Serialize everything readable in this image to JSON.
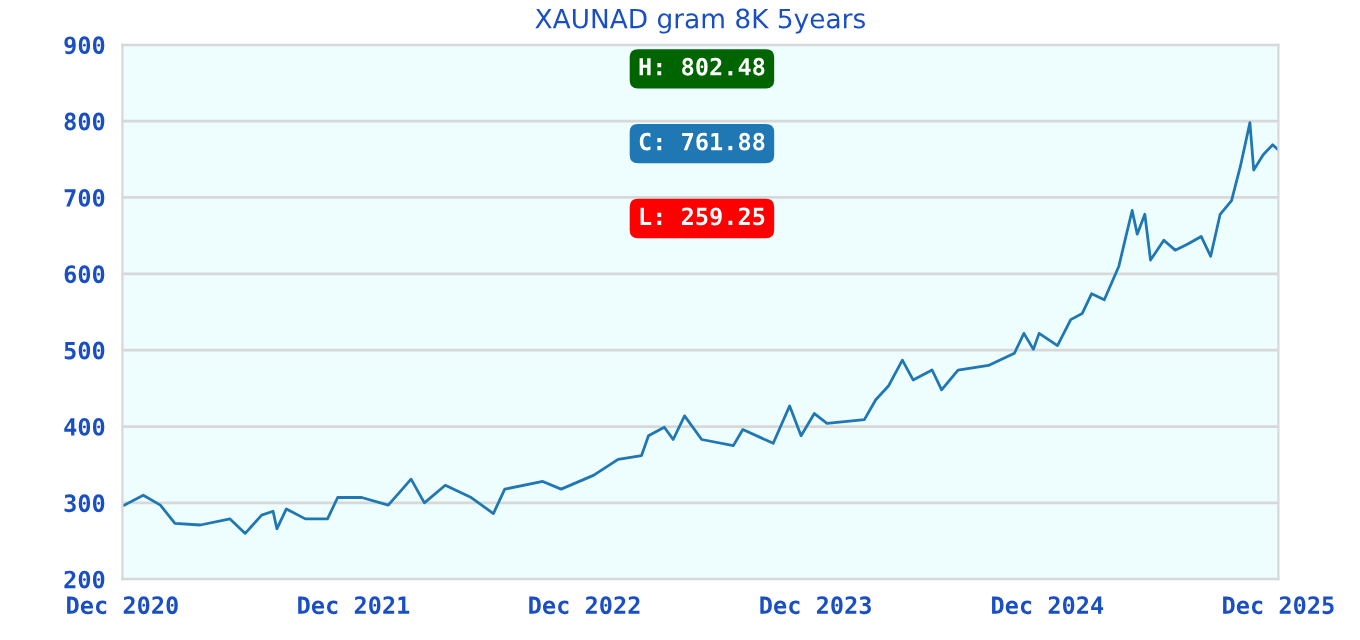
{
  "chart_data": {
    "type": "line",
    "title": "XAUNAD gram 8K 5years",
    "annotations": [
      "H: 802.48",
      "C: 761.88",
      "L: 259.25"
    ],
    "x": [
      "2020-12-04",
      "2021-01-03",
      "2021-01-30",
      "2021-02-22",
      "2021-04-03",
      "2021-05-20",
      "2021-06-13",
      "2021-07-09",
      "2021-07-27",
      "2021-08-02",
      "2021-08-17",
      "2021-09-16",
      "2021-10-21",
      "2021-11-06",
      "2021-12-14",
      "2022-01-25",
      "2022-03-02",
      "2022-03-23",
      "2022-04-25",
      "2022-06-05",
      "2022-07-10",
      "2022-07-28",
      "2022-09-26",
      "2022-10-25",
      "2022-12-15",
      "2023-01-23",
      "2023-03-01",
      "2023-03-12",
      "2023-04-06",
      "2023-04-20",
      "2023-05-08",
      "2023-06-04",
      "2023-07-24",
      "2023-08-08",
      "2023-09-25",
      "2023-10-21",
      "2023-11-08",
      "2023-11-29",
      "2023-12-19",
      "2024-02-16",
      "2024-03-05",
      "2024-03-25",
      "2024-04-16",
      "2024-05-03",
      "2024-06-02",
      "2024-06-17",
      "2024-07-13",
      "2024-08-30",
      "2024-10-10",
      "2024-10-25",
      "2024-11-09",
      "2024-11-18",
      "2024-12-17",
      "2025-01-07",
      "2025-01-25",
      "2025-02-09",
      "2025-03-01",
      "2025-03-24",
      "2025-04-05",
      "2025-04-14",
      "2025-04-22",
      "2025-05-04",
      "2025-05-13",
      "2025-06-03",
      "2025-06-21",
      "2025-07-11",
      "2025-08-01",
      "2025-08-16",
      "2025-08-31",
      "2025-09-18",
      "2025-10-02",
      "2025-10-17",
      "2025-10-23",
      "2025-11-07",
      "2025-11-22",
      "2025-12-01"
    ],
    "series": [
      {
        "color": "#1f77b4",
        "values": [
          297,
          310,
          297,
          273,
          271,
          279,
          260,
          284,
          289,
          266,
          292,
          279,
          279,
          307,
          307,
          297,
          331,
          300,
          323,
          307,
          286,
          318,
          328,
          318,
          336,
          357,
          362,
          388,
          399,
          383,
          414,
          383,
          375,
          396,
          378,
          427,
          388,
          417,
          404,
          409,
          435,
          453,
          487,
          461,
          474,
          448,
          474,
          480,
          496,
          522,
          501,
          522,
          506,
          540,
          548,
          574,
          566,
          610,
          652,
          683,
          652,
          678,
          618,
          644,
          631,
          639,
          649,
          623,
          678,
          696,
          741,
          798,
          736,
          756,
          769,
          762
        ]
      }
    ],
    "xlim": [
      "2020-12-01",
      "2025-12-01"
    ],
    "xticks": [
      {
        "value": "2020-12-01",
        "label": "Dec 2020"
      },
      {
        "value": "2021-12-01",
        "label": "Dec 2021"
      },
      {
        "value": "2022-12-01",
        "label": "Dec 2022"
      },
      {
        "value": "2023-12-01",
        "label": "Dec 2023"
      },
      {
        "value": "2024-12-01",
        "label": "Dec 2024"
      },
      {
        "value": "2025-12-01",
        "label": "Dec 2025"
      }
    ],
    "ylim": [
      200,
      900
    ],
    "yticks": [
      200,
      300,
      400,
      500,
      600,
      700,
      800,
      900
    ],
    "grid": "y",
    "legend": false,
    "marker": "none",
    "line_style": "solid"
  }
}
